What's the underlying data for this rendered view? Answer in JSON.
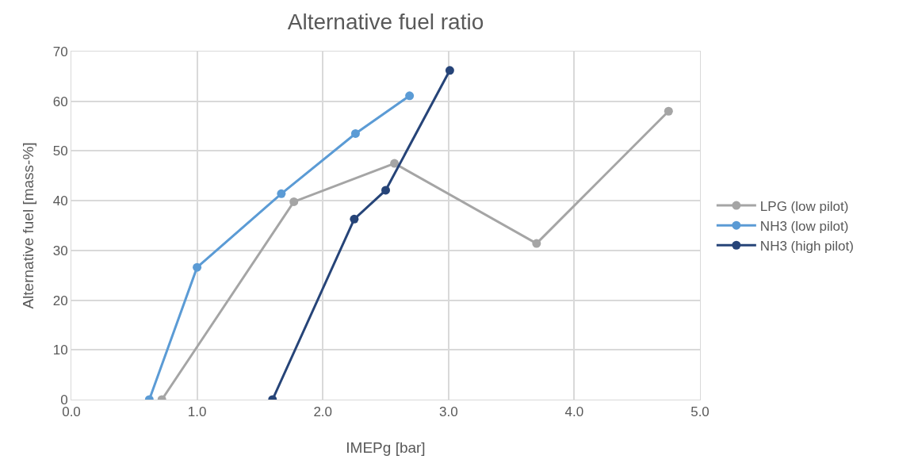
{
  "chart_data": {
    "type": "line",
    "title": "Alternative fuel ratio",
    "xlabel": "IMEPg [bar]",
    "ylabel": "Alternative fuel [mass-%]",
    "series": [
      {
        "name": "LPG (low pilot)",
        "color": "#a5a5a5",
        "x": [
          0.72,
          1.77,
          2.57,
          3.7,
          4.75
        ],
        "values": [
          0,
          39.8,
          47.5,
          31.4,
          58
        ]
      },
      {
        "name": "NH3 (low pilot)",
        "color": "#5b9bd5",
        "x": [
          0.62,
          1.0,
          1.67,
          2.26,
          2.69
        ],
        "values": [
          0,
          26.6,
          41.4,
          53.5,
          61.1
        ]
      },
      {
        "name": "NH3 (high pilot)",
        "color": "#264478",
        "x": [
          1.6,
          2.25,
          2.5,
          3.01
        ],
        "values": [
          0,
          36.3,
          42.1,
          66.2
        ]
      }
    ],
    "xlim": [
      0,
      5
    ],
    "xticks": [
      {
        "value": 0,
        "label": "0.0"
      },
      {
        "value": 1,
        "label": "1.0"
      },
      {
        "value": 2,
        "label": "2.0"
      },
      {
        "value": 3,
        "label": "3.0"
      },
      {
        "value": 4,
        "label": "4.0"
      },
      {
        "value": 5,
        "label": "5.0"
      }
    ],
    "ylim": [
      0,
      70
    ],
    "yticks": [
      0,
      10,
      20,
      30,
      40,
      50,
      60,
      70
    ],
    "grid": true,
    "legend": "right",
    "marker": "circle",
    "line_style": "solid"
  }
}
